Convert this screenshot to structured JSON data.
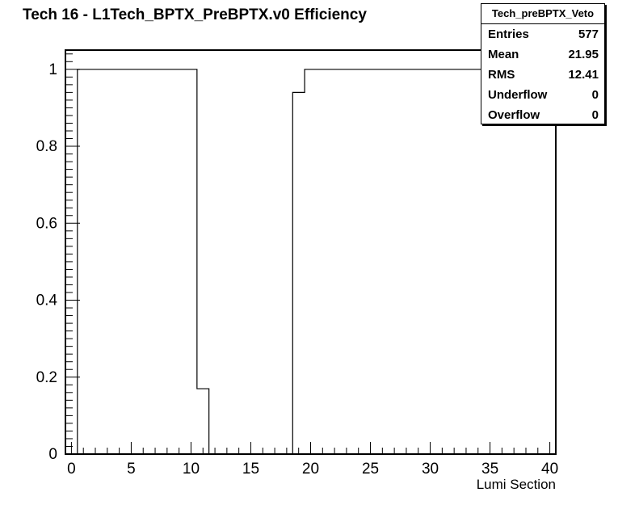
{
  "stats": {
    "name": "Tech_preBPTX_Veto",
    "rows": [
      {
        "label": "Entries",
        "value": "577"
      },
      {
        "label": "Mean",
        "value": "21.95"
      },
      {
        "label": "RMS",
        "value": "12.41"
      },
      {
        "label": "Underflow",
        "value": "0"
      },
      {
        "label": "Overflow",
        "value": "0"
      }
    ]
  },
  "chart_data": {
    "type": "line",
    "title": "Tech 16 - L1Tech_BPTX_PreBPTX.v0 Efficiency",
    "xlabel": "Lumi Section",
    "ylabel": "",
    "xlim": [
      -0.5,
      40.5
    ],
    "ylim": [
      0,
      1.05
    ],
    "xticks": [
      0,
      5,
      10,
      15,
      20,
      25,
      30,
      35,
      40
    ],
    "yticks": [
      0,
      0.2,
      0.4,
      0.6,
      0.8,
      1
    ],
    "ytick_labels": [
      "0",
      "0.2",
      "0.4",
      "0.6",
      "0.8",
      "1"
    ],
    "grid": false,
    "steps": [
      {
        "x0": 0.5,
        "x1": 10.5,
        "y": 1.0
      },
      {
        "x0": 10.5,
        "x1": 11.5,
        "y": 0.17
      },
      {
        "x0": 18.5,
        "x1": 19.5,
        "y": 0.94
      },
      {
        "x0": 19.5,
        "x1": 40.5,
        "y": 1.0
      }
    ]
  }
}
